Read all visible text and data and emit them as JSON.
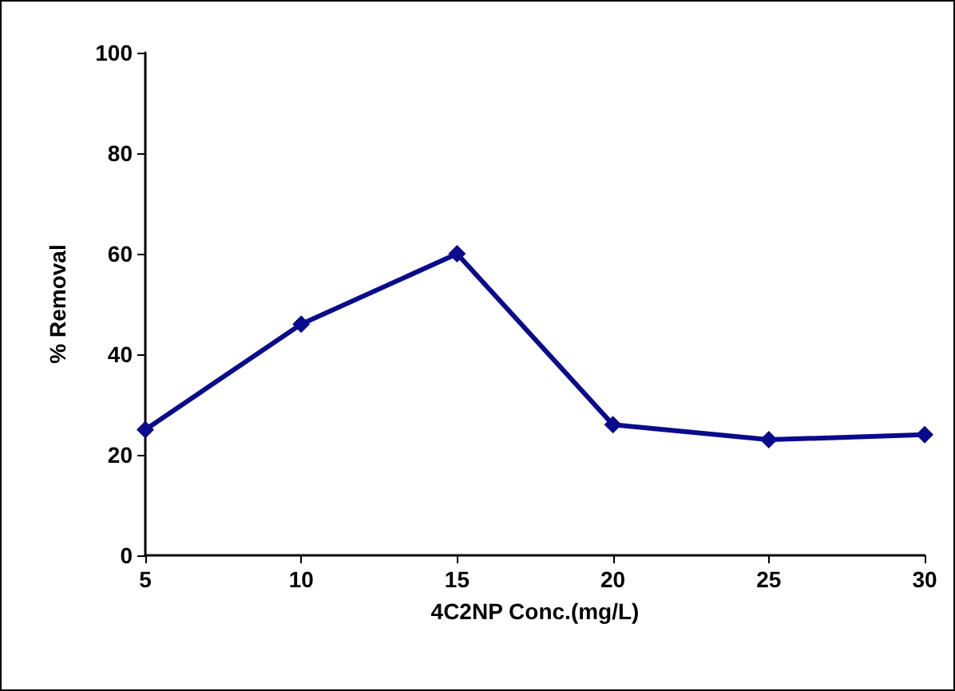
{
  "chart_data": {
    "type": "line",
    "xlabel": "4C2NP Conc.(mg/L)",
    "ylabel": "% Removal",
    "x": [
      5,
      10,
      15,
      20,
      25,
      30
    ],
    "series": [
      {
        "color": "#0a0a8c",
        "values": [
          25,
          46,
          60,
          26,
          23,
          24
        ]
      }
    ],
    "xlim": [
      5,
      30
    ],
    "xticks": [
      5,
      10,
      15,
      20,
      25,
      30
    ],
    "ylim": [
      0,
      100
    ],
    "yticks": [
      0,
      20,
      40,
      60,
      80,
      100
    ],
    "grid": false,
    "marker": "diamond",
    "line_style": "solid"
  }
}
